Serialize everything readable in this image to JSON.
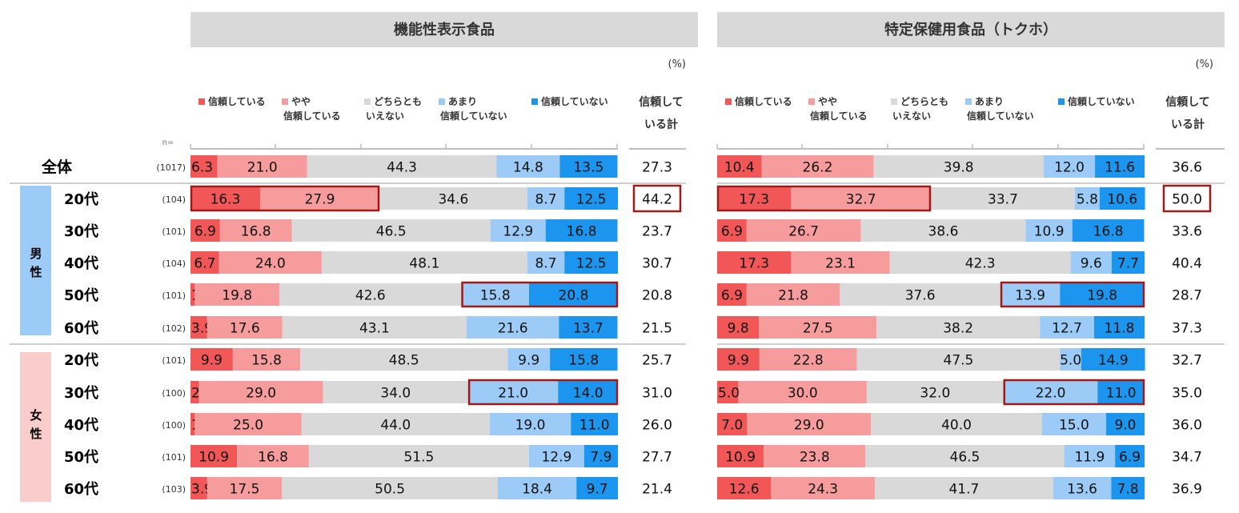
{
  "unit_label": "(%)",
  "n_label": "n=",
  "total_header": "信頼している計",
  "gender_labels": [
    "男性",
    "女性"
  ],
  "colors": {
    "trust": "#f25757",
    "somewhat_trust": "#f79c9c",
    "neutral": "#d9d9d9",
    "not_much": "#9dcbf7",
    "no_trust": "#1b95ee",
    "header_bg": "#d9d9d9",
    "male_bg": "#9dcbf7",
    "female_bg": "#fbcccc",
    "highlight": "#a11a1a"
  },
  "chart_data": [
    {
      "type": "bar",
      "stacked": "100%",
      "orientation": "horizontal",
      "title": "機能性表示食品",
      "legend": [
        "信頼している",
        "やや信頼している",
        "どちらともいえない",
        "あまり信頼していない",
        "信頼していない"
      ],
      "rows": [
        {
          "group": "",
          "label": "全体",
          "n": "(1017)",
          "values": [
            6.3,
            21.0,
            44.3,
            14.8,
            13.5
          ],
          "total": "27.3"
        },
        {
          "group": "男性",
          "label": "20代",
          "n": "(104)",
          "values": [
            16.3,
            27.9,
            34.6,
            8.7,
            12.5
          ],
          "total": "44.2"
        },
        {
          "group": "男性",
          "label": "30代",
          "n": "(101)",
          "values": [
            6.9,
            16.8,
            46.5,
            12.9,
            16.8
          ],
          "total": "23.7"
        },
        {
          "group": "男性",
          "label": "40代",
          "n": "(104)",
          "values": [
            6.7,
            24.0,
            48.1,
            8.7,
            12.5
          ],
          "total": "30.7"
        },
        {
          "group": "男性",
          "label": "50代",
          "n": "(101)",
          "values": [
            1.0,
            19.8,
            42.6,
            15.8,
            20.8
          ],
          "total": "20.8"
        },
        {
          "group": "男性",
          "label": "60代",
          "n": "(102)",
          "values": [
            3.9,
            17.6,
            43.1,
            21.6,
            13.7
          ],
          "total": "21.5"
        },
        {
          "group": "女性",
          "label": "20代",
          "n": "(101)",
          "values": [
            9.9,
            15.8,
            48.5,
            9.9,
            15.8
          ],
          "total": "25.7"
        },
        {
          "group": "女性",
          "label": "30代",
          "n": "(100)",
          "values": [
            2.0,
            29.0,
            34.0,
            21.0,
            14.0
          ],
          "total": "31.0"
        },
        {
          "group": "女性",
          "label": "40代",
          "n": "(100)",
          "values": [
            1.0,
            25.0,
            44.0,
            19.0,
            11.0
          ],
          "total": "26.0"
        },
        {
          "group": "女性",
          "label": "50代",
          "n": "(101)",
          "values": [
            10.9,
            16.8,
            51.5,
            12.9,
            7.9
          ],
          "total": "27.7"
        },
        {
          "group": "女性",
          "label": "60代",
          "n": "(103)",
          "values": [
            3.9,
            17.5,
            50.5,
            18.4,
            9.7
          ],
          "total": "21.4"
        }
      ],
      "highlights": [
        {
          "row": 1,
          "from": 0,
          "to": 1
        },
        {
          "row": 4,
          "from": 3,
          "to": 4
        },
        {
          "row": 7,
          "from": 3,
          "to": 4
        }
      ],
      "highlight_totals": [
        1
      ]
    },
    {
      "type": "bar",
      "stacked": "100%",
      "orientation": "horizontal",
      "title": "特定保健用食品（トクホ）",
      "legend": [
        "信頼している",
        "やや信頼している",
        "どちらともいえない",
        "あまり信頼していない",
        "信頼していない"
      ],
      "rows": [
        {
          "values": [
            10.4,
            26.2,
            39.8,
            12.0,
            11.6
          ],
          "total": "36.6"
        },
        {
          "values": [
            17.3,
            32.7,
            33.7,
            5.8,
            10.6
          ],
          "total": "50.0"
        },
        {
          "values": [
            6.9,
            26.7,
            38.6,
            10.9,
            16.8
          ],
          "total": "33.6"
        },
        {
          "values": [
            17.3,
            23.1,
            42.3,
            9.6,
            7.7
          ],
          "total": "40.4"
        },
        {
          "values": [
            6.9,
            21.8,
            37.6,
            13.9,
            19.8
          ],
          "total": "28.7"
        },
        {
          "values": [
            9.8,
            27.5,
            38.2,
            12.7,
            11.8
          ],
          "total": "37.3"
        },
        {
          "values": [
            9.9,
            22.8,
            47.5,
            5.0,
            14.9
          ],
          "total": "32.7"
        },
        {
          "values": [
            5.0,
            30.0,
            32.0,
            22.0,
            11.0
          ],
          "total": "35.0"
        },
        {
          "values": [
            7.0,
            29.0,
            40.0,
            15.0,
            9.0
          ],
          "total": "36.0"
        },
        {
          "values": [
            10.9,
            23.8,
            46.5,
            11.9,
            6.9
          ],
          "total": "34.7"
        },
        {
          "values": [
            12.6,
            24.3,
            41.7,
            13.6,
            7.8
          ],
          "total": "36.9"
        }
      ],
      "highlights": [
        {
          "row": 1,
          "from": 0,
          "to": 1
        },
        {
          "row": 4,
          "from": 3,
          "to": 4
        },
        {
          "row": 7,
          "from": 3,
          "to": 4
        }
      ],
      "highlight_totals": [
        1
      ]
    }
  ]
}
